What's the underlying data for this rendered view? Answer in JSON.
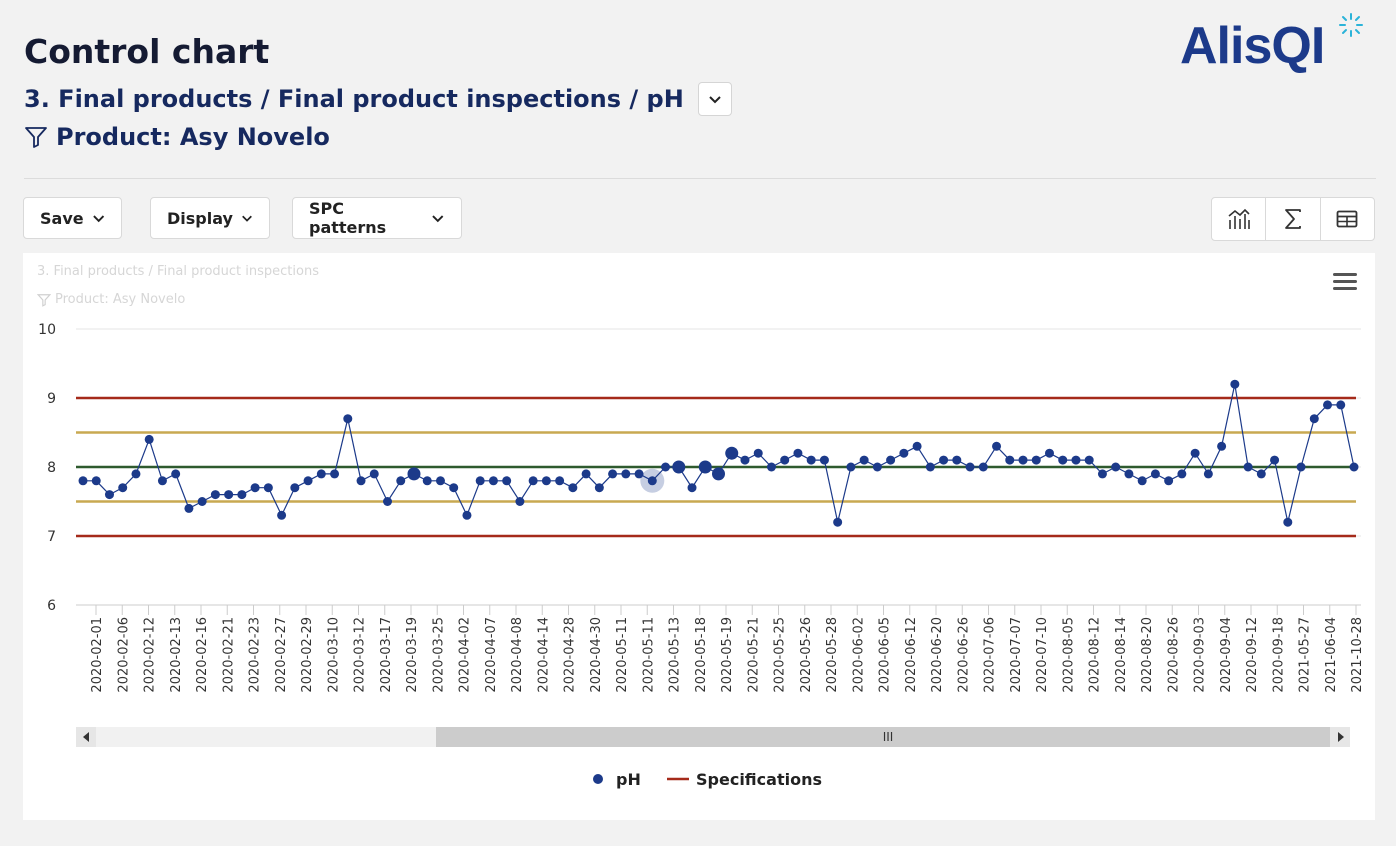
{
  "header": {
    "title": "Control chart",
    "breadcrumb": "3. Final products / Final product inspections / pH",
    "filter": "Product: Asy Novelo"
  },
  "logo": {
    "text": "AlisQI"
  },
  "toolbar": {
    "save_label": "Save",
    "display_label": "Display",
    "spc_label": "SPC patterns",
    "tool_icons": [
      "control-chart-icon",
      "sigma-icon",
      "table-icon"
    ]
  },
  "chart_panel": {
    "ghost_title": "3. Final products / Final product inspections",
    "ghost_filter": "Product: Asy Novelo",
    "scrollbar_grip": "III"
  },
  "chart_data": {
    "type": "line",
    "ylim": [
      6,
      10
    ],
    "y_ticks": [
      6,
      7,
      8,
      9,
      10
    ],
    "x_tick_labels": [
      "2020-02-01",
      "2020-02-06",
      "2020-02-12",
      "2020-02-13",
      "2020-02-16",
      "2020-02-21",
      "2020-02-23",
      "2020-02-27",
      "2020-02-29",
      "2020-03-10",
      "2020-03-12",
      "2020-03-17",
      "2020-03-19",
      "2020-03-25",
      "2020-04-02",
      "2020-04-07",
      "2020-04-08",
      "2020-04-14",
      "2020-04-28",
      "2020-04-30",
      "2020-05-11",
      "2020-05-11",
      "2020-05-13",
      "2020-05-18",
      "2020-05-19",
      "2020-05-21",
      "2020-05-25",
      "2020-05-26",
      "2020-05-28",
      "2020-06-02",
      "2020-06-05",
      "2020-06-12",
      "2020-06-20",
      "2020-06-26",
      "2020-07-06",
      "2020-07-07",
      "2020-07-10",
      "2020-08-05",
      "2020-08-12",
      "2020-08-14",
      "2020-08-20",
      "2020-08-26",
      "2020-09-03",
      "2020-09-04",
      "2020-09-12",
      "2020-09-18",
      "2021-05-27",
      "2021-06-04",
      "2021-10-28"
    ],
    "series": [
      {
        "name": "pH",
        "color": "#1c3a8a",
        "values": [
          7.8,
          7.8,
          7.6,
          7.7,
          7.9,
          8.4,
          7.8,
          7.9,
          7.4,
          7.5,
          7.6,
          7.6,
          7.6,
          7.7,
          7.7,
          7.3,
          7.7,
          7.8,
          7.9,
          7.9,
          8.7,
          7.8,
          7.9,
          7.5,
          7.8,
          7.9,
          7.8,
          7.8,
          7.7,
          7.3,
          7.8,
          7.8,
          7.8,
          7.5,
          7.8,
          7.8,
          7.8,
          7.7,
          7.9,
          7.7,
          7.9,
          7.9,
          7.9,
          7.8,
          8.0,
          8.0,
          7.7,
          8.0,
          7.9,
          8.2,
          8.1,
          8.2,
          8.0,
          8.1,
          8.2,
          8.1,
          8.1,
          7.2,
          8.0,
          8.1,
          8.0,
          8.1,
          8.2,
          8.3,
          8.0,
          8.1,
          8.1,
          8.0,
          8.0,
          8.3,
          8.1,
          8.1,
          8.1,
          8.2,
          8.1,
          8.1,
          8.1,
          7.9,
          8.0,
          7.9,
          7.8,
          7.9,
          7.8,
          7.9,
          8.2,
          7.9,
          8.3,
          9.2,
          8.0,
          7.9,
          8.1,
          7.2,
          8.0,
          8.7,
          8.9,
          8.9,
          8.0
        ]
      }
    ],
    "large_points": [
      25,
      45,
      47,
      48,
      49
    ],
    "highlighted_point": 43,
    "limits": {
      "specifications": {
        "name": "Specifications",
        "upper": 9.0,
        "lower": 7.0,
        "color": "#a52a1a"
      },
      "control": {
        "upper": 8.5,
        "lower": 7.5,
        "color": "#c8a951"
      },
      "center": {
        "value": 8.0,
        "color": "#2e5a2e"
      }
    },
    "legend": [
      {
        "name": "pH",
        "marker": "circle",
        "color": "#1c3a8a"
      },
      {
        "name": "Specifications",
        "marker": "line",
        "color": "#a52a1a"
      }
    ],
    "grid": "horizontal",
    "legend_position": "bottom-center"
  }
}
